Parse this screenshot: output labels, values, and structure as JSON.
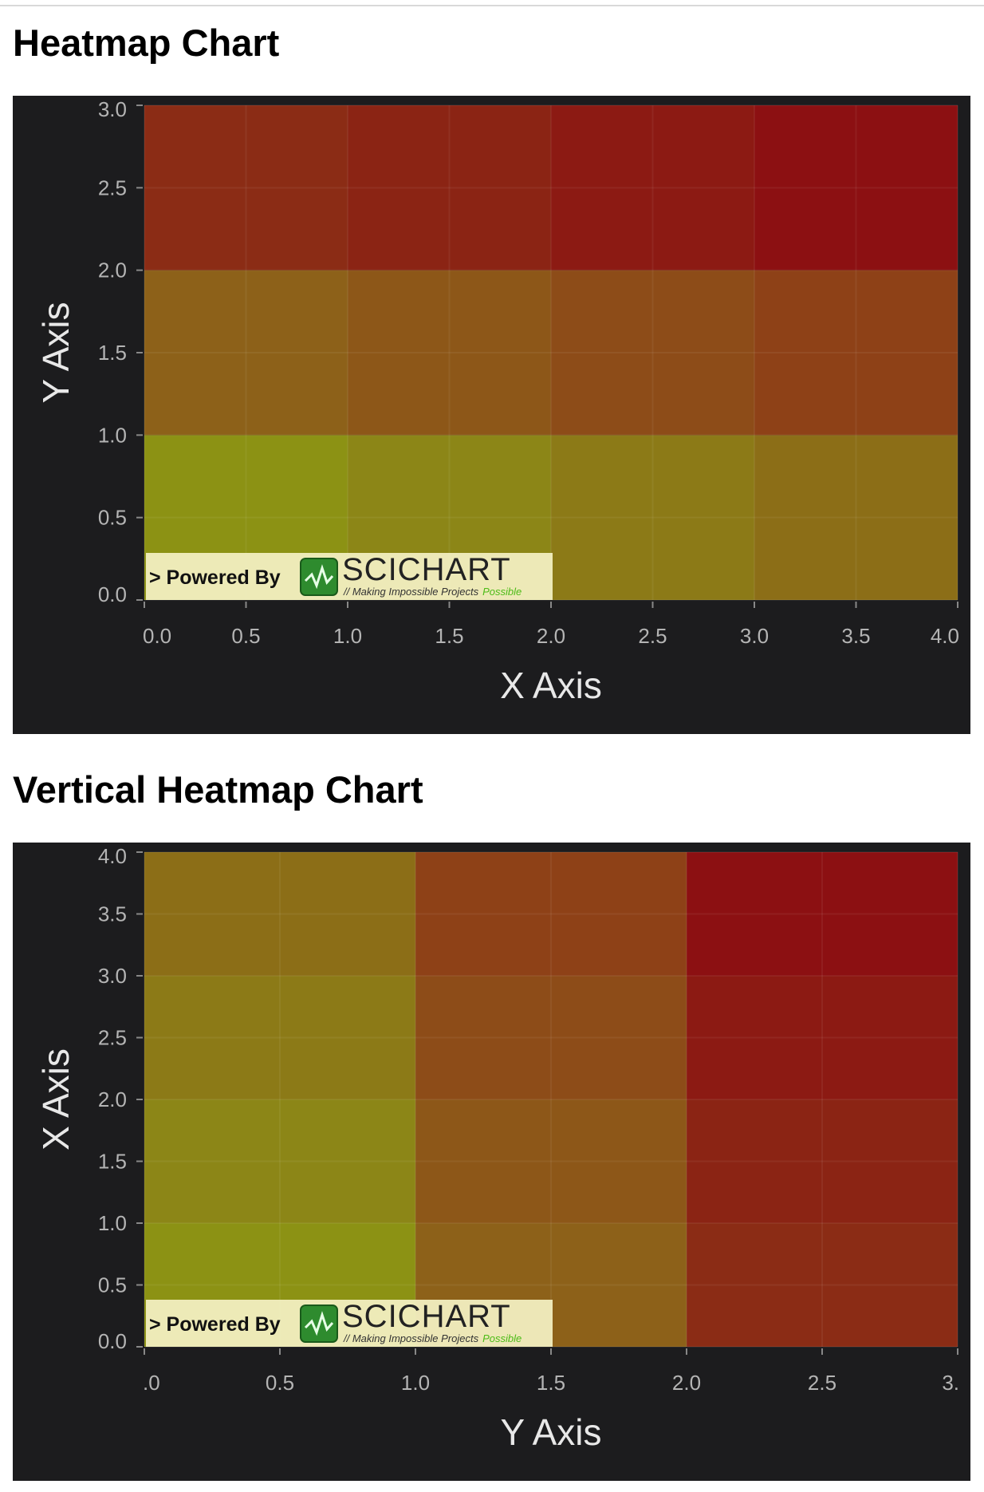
{
  "sections": [
    {
      "title": "Heatmap Chart"
    },
    {
      "title": "Vertical Heatmap Chart"
    }
  ],
  "watermark": {
    "prefix": "> Powered By",
    "brand": "SCICHART",
    "tagline": "// Making Impossible Projects",
    "tagline_accent": "Possible"
  },
  "colors": {
    "panel_background": "#1c1c1e",
    "tick_text": "#b4b4b4",
    "axis_title": "#e8e8e8",
    "brand_green": "#2e8b2e",
    "accent_green": "#4cbb17"
  },
  "chart_data": [
    {
      "type": "heatmap",
      "title": "Heatmap Chart",
      "xlabel": "X Axis",
      "ylabel": "Y Axis",
      "xlim": [
        0,
        4
      ],
      "ylim": [
        0,
        3
      ],
      "x_ticks": [
        "0.0",
        "0.5",
        "1.0",
        "1.5",
        "2.0",
        "2.5",
        "3.0",
        "3.5",
        "4.0"
      ],
      "y_ticks": [
        "0.0",
        "0.5",
        "1.0",
        "1.5",
        "2.0",
        "2.5",
        "3.0"
      ],
      "cells": [
        {
          "x": [
            0,
            1
          ],
          "y": [
            0,
            1
          ],
          "value": 0,
          "color": "#8c9214"
        },
        {
          "x": [
            1,
            2
          ],
          "y": [
            0,
            1
          ],
          "value": 1,
          "color": "#8c8617"
        },
        {
          "x": [
            2,
            3
          ],
          "y": [
            0,
            1
          ],
          "value": 2,
          "color": "#8c7a17"
        },
        {
          "x": [
            3,
            4
          ],
          "y": [
            0,
            1
          ],
          "value": 3,
          "color": "#8c6e17"
        },
        {
          "x": [
            0,
            1
          ],
          "y": [
            1,
            2
          ],
          "value": 3.5,
          "color": "#8d6119"
        },
        {
          "x": [
            1,
            2
          ],
          "y": [
            1,
            2
          ],
          "value": 4,
          "color": "#8d5718"
        },
        {
          "x": [
            2,
            3
          ],
          "y": [
            1,
            2
          ],
          "value": 4.5,
          "color": "#8d4c18"
        },
        {
          "x": [
            3,
            4
          ],
          "y": [
            1,
            2
          ],
          "value": 5,
          "color": "#8e4117"
        },
        {
          "x": [
            0,
            1
          ],
          "y": [
            2,
            3
          ],
          "value": 5.5,
          "color": "#8b2c15"
        },
        {
          "x": [
            1,
            2
          ],
          "y": [
            2,
            3
          ],
          "value": 6,
          "color": "#8b2414"
        },
        {
          "x": [
            2,
            3
          ],
          "y": [
            2,
            3
          ],
          "value": 6.5,
          "color": "#8c1a13"
        },
        {
          "x": [
            3,
            4
          ],
          "y": [
            2,
            3
          ],
          "value": 7,
          "color": "#8c1012"
        }
      ]
    },
    {
      "type": "heatmap",
      "title": "Vertical Heatmap Chart",
      "xlabel": "Y Axis",
      "ylabel": "X Axis",
      "xlim": [
        0,
        3
      ],
      "ylim": [
        0,
        4
      ],
      "x_ticks": [
        ".0",
        "0.5",
        "1.0",
        "1.5",
        "2.0",
        "2.5",
        "3."
      ],
      "y_ticks": [
        "0.0",
        "0.5",
        "1.0",
        "1.5",
        "2.0",
        "2.5",
        "3.0",
        "3.5",
        "4.0"
      ],
      "cells": [
        {
          "x": [
            0,
            1
          ],
          "y": [
            0,
            1
          ],
          "value": 0,
          "color": "#8c9214"
        },
        {
          "x": [
            0,
            1
          ],
          "y": [
            1,
            2
          ],
          "value": 1,
          "color": "#8c8617"
        },
        {
          "x": [
            0,
            1
          ],
          "y": [
            2,
            3
          ],
          "value": 2,
          "color": "#8c7a17"
        },
        {
          "x": [
            0,
            1
          ],
          "y": [
            3,
            4
          ],
          "value": 3,
          "color": "#8c6e17"
        },
        {
          "x": [
            1,
            2
          ],
          "y": [
            0,
            1
          ],
          "value": 3.5,
          "color": "#8d6119"
        },
        {
          "x": [
            1,
            2
          ],
          "y": [
            1,
            2
          ],
          "value": 4,
          "color": "#8d5718"
        },
        {
          "x": [
            1,
            2
          ],
          "y": [
            2,
            3
          ],
          "value": 4.5,
          "color": "#8d4c18"
        },
        {
          "x": [
            1,
            2
          ],
          "y": [
            3,
            4
          ],
          "value": 5,
          "color": "#8e4117"
        },
        {
          "x": [
            2,
            3
          ],
          "y": [
            0,
            1
          ],
          "value": 5.5,
          "color": "#8b2c15"
        },
        {
          "x": [
            2,
            3
          ],
          "y": [
            1,
            2
          ],
          "value": 6,
          "color": "#8b2414"
        },
        {
          "x": [
            2,
            3
          ],
          "y": [
            2,
            3
          ],
          "value": 6.5,
          "color": "#8c1a13"
        },
        {
          "x": [
            2,
            3
          ],
          "y": [
            3,
            4
          ],
          "value": 7,
          "color": "#8c1012"
        }
      ]
    }
  ]
}
